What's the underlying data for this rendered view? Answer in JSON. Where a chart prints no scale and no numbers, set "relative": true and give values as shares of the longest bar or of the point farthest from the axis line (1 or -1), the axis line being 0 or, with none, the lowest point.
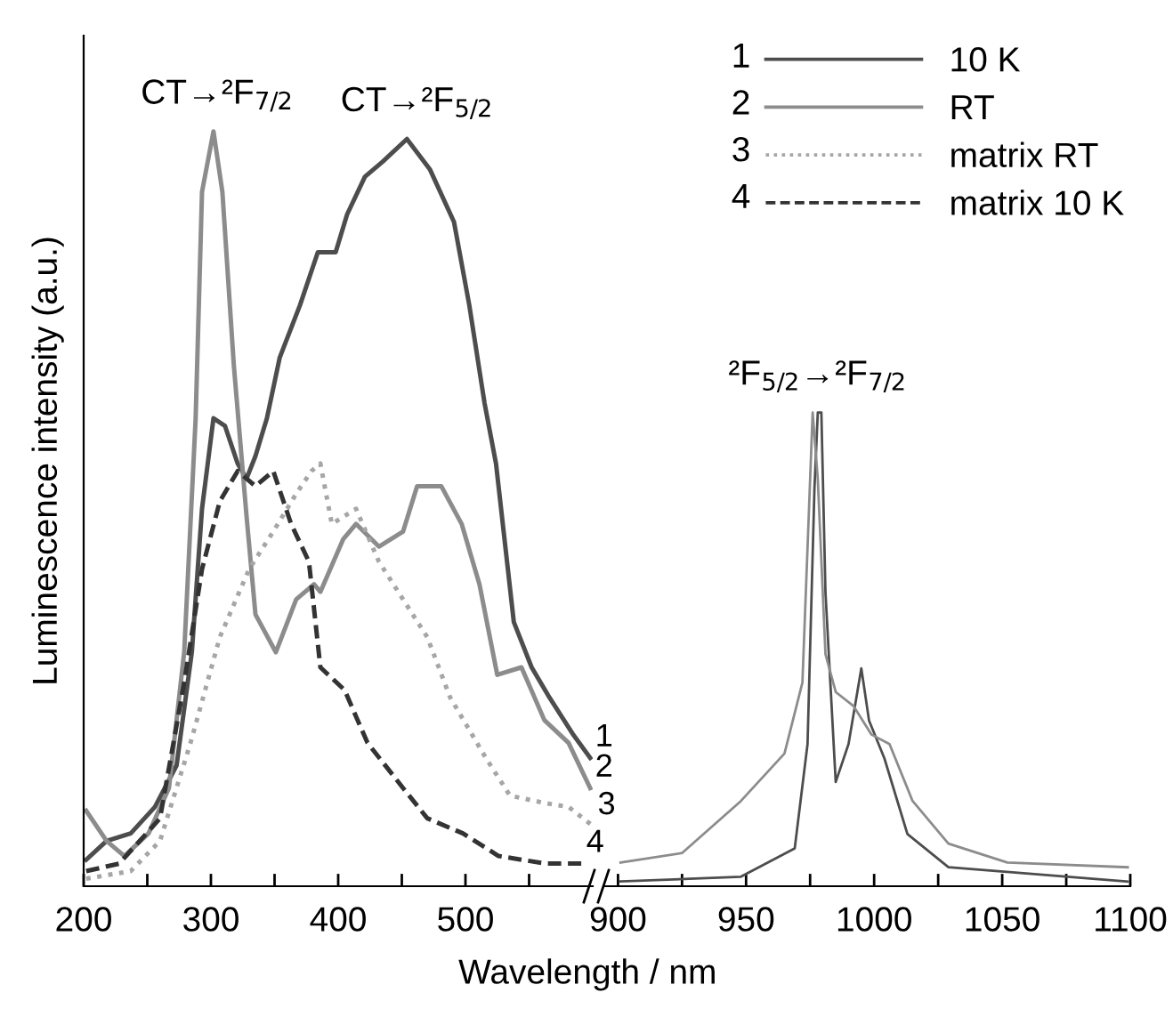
{
  "chart_data": [
    {
      "type": "line",
      "relative": true,
      "xlabel": "Wavelength / nm",
      "ylabel": "Luminescence intensity (a.u.)",
      "xlim": [
        200,
        600
      ],
      "xticks": [
        200,
        {
          "value": 250,
          "label": null
        },
        300,
        {
          "value": 350,
          "label": null
        },
        400,
        {
          "value": 450,
          "label": null
        },
        500,
        {
          "value": 550,
          "label": null
        }
      ],
      "tick_labels": "x",
      "legend": "top right",
      "series": [
        {
          "name": "10 K",
          "color": "#4d4d4d",
          "line_style": "solid",
          "x": [
            202,
            218,
            237,
            256,
            273,
            285,
            293,
            302,
            311,
            321,
            328,
            335,
            344,
            354,
            370,
            384,
            398,
            407,
            421,
            435,
            454,
            472,
            491,
            503,
            515,
            524,
            538,
            552,
            566,
            585,
            598
          ],
          "values": [
            0.035,
            0.06,
            0.07,
            0.105,
            0.16,
            0.31,
            0.5,
            0.62,
            0.61,
            0.56,
            0.54,
            0.57,
            0.62,
            0.7,
            0.77,
            0.84,
            0.84,
            0.89,
            0.94,
            0.96,
            0.99,
            0.95,
            0.88,
            0.77,
            0.64,
            0.56,
            0.35,
            0.29,
            0.25,
            0.2,
            0.17
          ]
        },
        {
          "name": "RT",
          "color": "#8c8c8c",
          "line_style": "solid",
          "x": [
            202,
            218,
            232,
            251,
            267,
            279,
            288,
            293,
            302,
            309,
            318,
            328,
            335,
            351,
            367,
            381,
            386,
            404,
            414,
            432,
            451,
            462,
            481,
            497,
            511,
            525,
            544,
            562,
            581,
            598
          ],
          "values": [
            0.1,
            0.06,
            0.04,
            0.07,
            0.13,
            0.31,
            0.62,
            0.92,
            1.0,
            0.92,
            0.69,
            0.49,
            0.36,
            0.31,
            0.38,
            0.4,
            0.39,
            0.46,
            0.48,
            0.45,
            0.47,
            0.53,
            0.53,
            0.48,
            0.4,
            0.28,
            0.29,
            0.22,
            0.19,
            0.13
          ]
        },
        {
          "name": "matrix RT",
          "color": "#a6a6a6",
          "line_style": "dotted",
          "x": [
            202,
            237,
            260,
            284,
            307,
            330,
            349,
            367,
            379,
            386,
            395,
            414,
            432,
            451,
            470,
            488,
            516,
            535,
            563,
            581,
            600
          ],
          "values": [
            0.01,
            0.02,
            0.06,
            0.19,
            0.33,
            0.42,
            0.47,
            0.52,
            0.55,
            0.56,
            0.48,
            0.5,
            0.43,
            0.38,
            0.33,
            0.25,
            0.17,
            0.12,
            0.11,
            0.105,
            0.08
          ]
        },
        {
          "name": "matrix 10 K",
          "color": "#333333",
          "line_style": "dashed",
          "x": [
            202,
            228,
            260,
            279,
            293,
            307,
            321,
            335,
            349,
            363,
            377,
            386,
            405,
            423,
            451,
            470,
            498,
            526,
            563,
            591
          ],
          "values": [
            0.02,
            0.03,
            0.09,
            0.27,
            0.42,
            0.51,
            0.55,
            0.53,
            0.55,
            0.48,
            0.43,
            0.29,
            0.26,
            0.19,
            0.13,
            0.09,
            0.07,
            0.04,
            0.03,
            0.03
          ]
        }
      ],
      "annotations": [
        {
          "text": "1",
          "x": 598,
          "y": 0.17
        },
        {
          "text": "2",
          "x": 598,
          "y": 0.13
        },
        {
          "text": "3",
          "x": 600,
          "y": 0.08
        },
        {
          "text": "4",
          "x": 591,
          "y": 0.03
        },
        {
          "text": "CT→²F$_{7/2}$",
          "x": 305,
          "y": 1.0
        },
        {
          "text": "CT→²F$_{5/2}$",
          "x": 462,
          "y": 0.99
        }
      ]
    },
    {
      "type": "line",
      "relative": true,
      "xlim": [
        895,
        1100
      ],
      "xticks": [
        900,
        {
          "value": 925,
          "label": null
        },
        950,
        {
          "value": 975,
          "label": null
        },
        1000,
        {
          "value": 1025,
          "label": null
        },
        1050,
        {
          "value": 1075,
          "label": null
        },
        1100
      ],
      "tick_labels": "x",
      "series": [
        {
          "color": "#4d4d4d",
          "line_style": "solid",
          "x": [
            901,
            948,
            969,
            974,
            976.7,
            978,
            979.4,
            981,
            985,
            990,
            995,
            998,
            1004,
            1013,
            1029,
            1099
          ],
          "values": [
            0.01,
            0.02,
            0.08,
            0.3,
            0.84,
            1.0,
            1.0,
            0.62,
            0.22,
            0.3,
            0.46,
            0.35,
            0.27,
            0.11,
            0.04,
            0.01
          ]
        },
        {
          "color": "#8c8c8c",
          "line_style": "solid",
          "x": [
            901,
            925,
            948,
            965,
            972,
            976,
            978,
            981,
            985,
            992,
            999,
            1006,
            1015,
            1029,
            1052,
            1099
          ],
          "values": [
            0.05,
            0.07,
            0.18,
            0.28,
            0.43,
            1.0,
            0.86,
            0.49,
            0.41,
            0.38,
            0.32,
            0.3,
            0.18,
            0.09,
            0.05,
            0.04
          ]
        }
      ],
      "annotations": [
        {
          "text": "²F$_{5/2}$→²F$_{7/2}$",
          "x": 978,
          "y": 1.0
        }
      ]
    }
  ]
}
